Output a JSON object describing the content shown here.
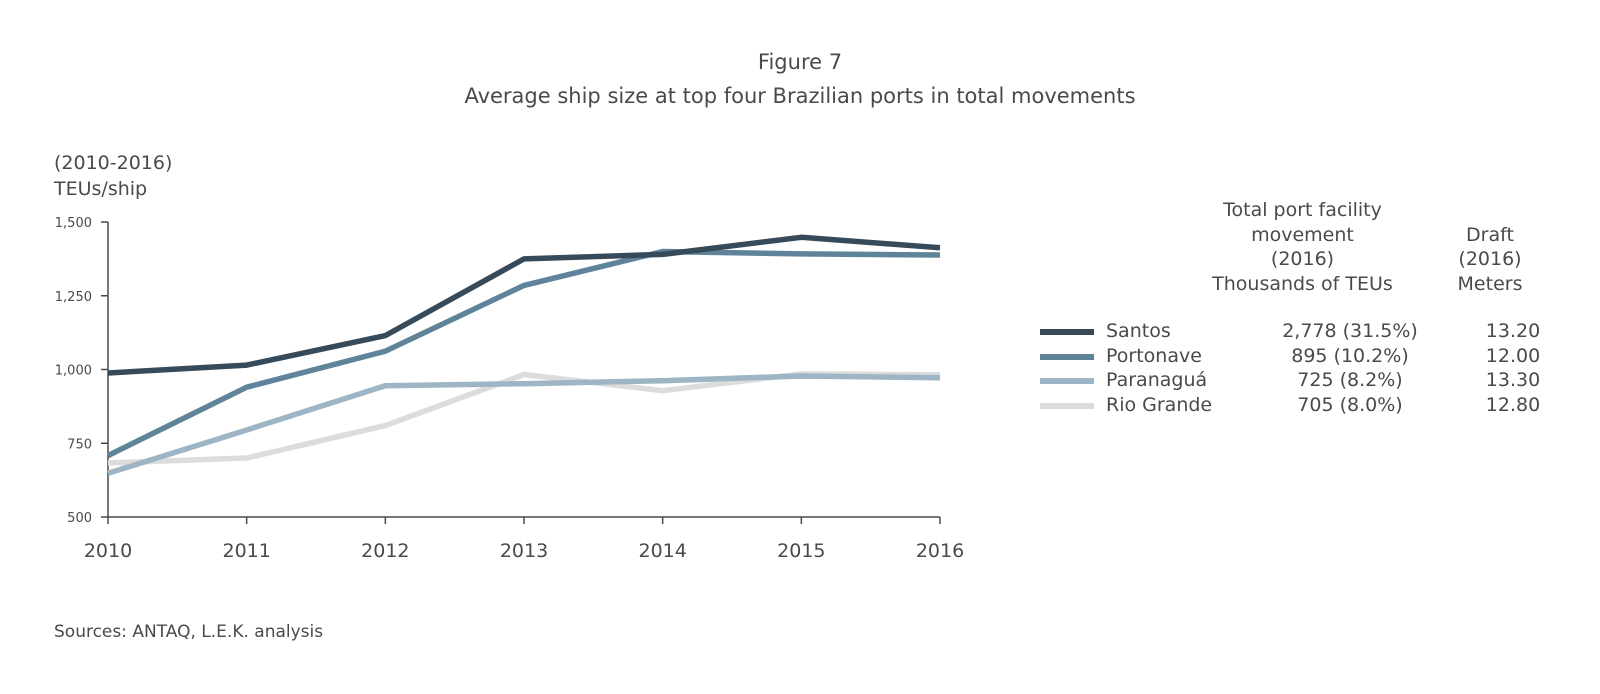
{
  "figure": {
    "label": "Figure 7",
    "title": "Average ship size at top four Brazilian ports in total movements",
    "range_label": "(2010-2016)",
    "unit_label": "TEUs/ship",
    "source": "Sources: ANTAQ, L.E.K. analysis"
  },
  "table_headers": {
    "movement": [
      "Total port facility",
      "movement",
      "(2016)",
      "Thousands of TEUs"
    ],
    "draft": [
      "Draft",
      "(2016)",
      "Meters"
    ]
  },
  "legend": [
    {
      "name": "Santos",
      "movement": "2,778 (31.5%)",
      "draft": "13.20",
      "color": "#374a5a"
    },
    {
      "name": "Portonave",
      "movement": "895 (10.2%)",
      "draft": "12.00",
      "color": "#5f8499"
    },
    {
      "name": "Paranaguá",
      "movement": "725 (8.2%)",
      "draft": "13.30",
      "color": "#9db5c4"
    },
    {
      "name": "Rio Grande",
      "movement": "705 (8.0%)",
      "draft": "12.80",
      "color": "#dcdcdc"
    }
  ],
  "chart_data": {
    "type": "line",
    "title": "Average ship size at top four Brazilian ports in total movements",
    "xlabel": "",
    "ylabel": "TEUs/ship",
    "categories": [
      "2010",
      "2011",
      "2012",
      "2013",
      "2014",
      "2015",
      "2016"
    ],
    "ylim": [
      500,
      1500
    ],
    "yticks": [
      500,
      750,
      1000,
      1250,
      1500
    ],
    "ytick_labels": [
      "500",
      "750",
      "1,000",
      "1,250",
      "1,500"
    ],
    "grid": false,
    "legend_position": "right",
    "series": [
      {
        "name": "Santos",
        "color": "#374a5a",
        "values": [
          988,
          1015,
          1115,
          1375,
          1390,
          1448,
          1413
        ]
      },
      {
        "name": "Portonave",
        "color": "#5f8499",
        "values": [
          708,
          940,
          1062,
          1285,
          1400,
          1392,
          1388
        ]
      },
      {
        "name": "Paranaguá",
        "color": "#9db5c4",
        "values": [
          648,
          795,
          945,
          952,
          962,
          978,
          972
        ]
      },
      {
        "name": "Rio Grande",
        "color": "#dcdcdc",
        "values": [
          683,
          700,
          810,
          983,
          928,
          985,
          982
        ]
      }
    ]
  }
}
